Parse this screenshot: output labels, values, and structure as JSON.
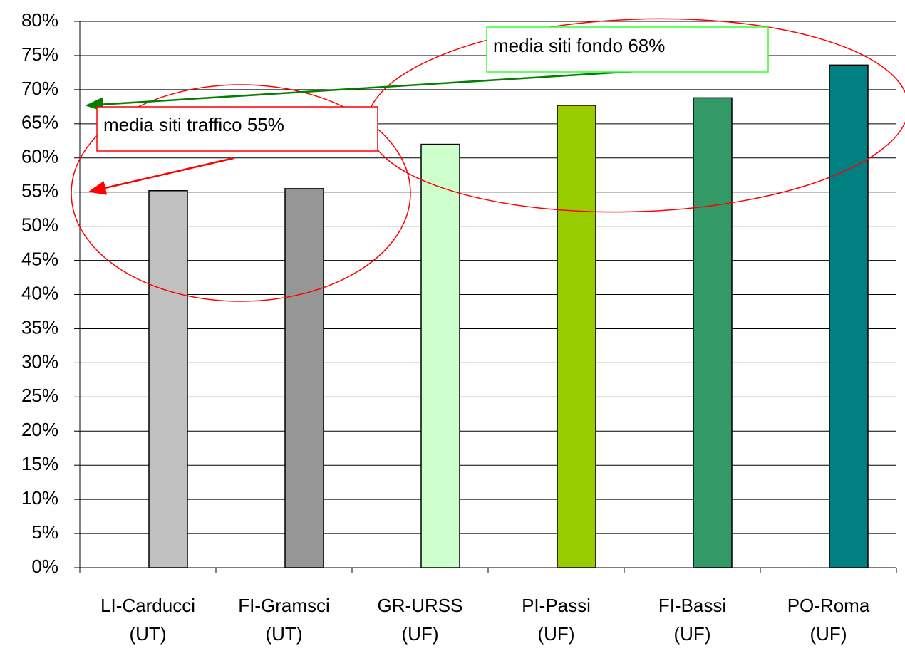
{
  "chart_data": {
    "type": "bar",
    "categories": [
      [
        "LI-Carducci",
        "(UT)"
      ],
      [
        "FI-Gramsci",
        "(UT)"
      ],
      [
        "GR-URSS",
        "(UF)"
      ],
      [
        "PI-Passi",
        "(UF)"
      ],
      [
        "FI-Bassi",
        "(UF)"
      ],
      [
        "PO-Roma",
        "(UF)"
      ]
    ],
    "values": [
      55.2,
      55.5,
      62.0,
      67.7,
      68.8,
      73.6
    ],
    "colors": [
      "#c0c0c0",
      "#969696",
      "#ccffcc",
      "#99cc00",
      "#339966",
      "#008080"
    ],
    "ylim": [
      0,
      80
    ],
    "yticks": [
      {
        "value": 0,
        "label": "0%"
      },
      {
        "value": 5,
        "label": "5%"
      },
      {
        "value": 10,
        "label": "10%"
      },
      {
        "value": 15,
        "label": "15%"
      },
      {
        "value": 20,
        "label": "20%"
      },
      {
        "value": 25,
        "label": "25%"
      },
      {
        "value": 30,
        "label": "30%"
      },
      {
        "value": 35,
        "label": "35%"
      },
      {
        "value": 40,
        "label": "40%"
      },
      {
        "value": 45,
        "label": "45%"
      },
      {
        "value": 50,
        "label": "50%"
      },
      {
        "value": 55,
        "label": "55%"
      },
      {
        "value": 60,
        "label": "60%"
      },
      {
        "value": 65,
        "label": "65%"
      },
      {
        "value": 70,
        "label": "70%"
      },
      {
        "value": 75,
        "label": "75%"
      },
      {
        "value": 80,
        "label": "80%"
      }
    ],
    "grid": true,
    "annotations": [
      "media siti fondo 68%",
      "media siti traffico 55%"
    ]
  }
}
